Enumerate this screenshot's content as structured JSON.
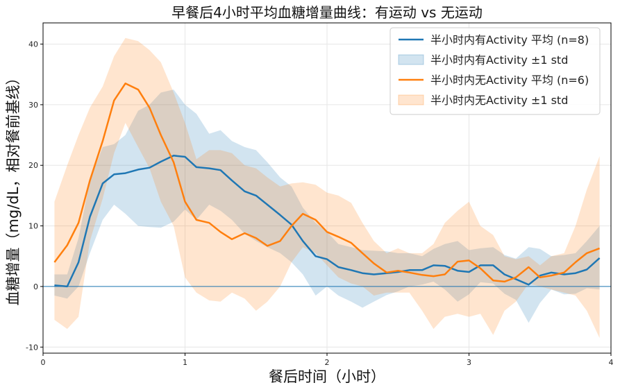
{
  "chart_data": {
    "type": "line",
    "title": "早餐后4小时平均血糖增量曲线：有运动 vs 无运动",
    "xlabel": "餐后时间（小时）",
    "ylabel": "血糖增量（mg/dL，相对餐前基线）",
    "xlim": [
      0,
      4
    ],
    "ylim": [
      -11,
      43.5
    ],
    "xticks": [
      0,
      1,
      2,
      3,
      4
    ],
    "xtick_labels": [
      "0",
      "1",
      "2",
      "3",
      "4"
    ],
    "yticks": [
      -10,
      0,
      10,
      20,
      30,
      40
    ],
    "ytick_labels": [
      "-10",
      "0",
      "10",
      "20",
      "30",
      "40"
    ],
    "grid": true,
    "legend_position": "top-right",
    "reference_line": {
      "y": 0,
      "color": "#1f77b4"
    },
    "x": [
      0.08,
      0.17,
      0.25,
      0.33,
      0.42,
      0.5,
      0.58,
      0.67,
      0.75,
      0.83,
      0.92,
      1.0,
      1.08,
      1.17,
      1.25,
      1.33,
      1.42,
      1.5,
      1.58,
      1.67,
      1.75,
      1.83,
      1.92,
      2.0,
      2.08,
      2.17,
      2.25,
      2.33,
      2.42,
      2.5,
      2.58,
      2.67,
      2.75,
      2.83,
      2.92,
      3.0,
      3.08,
      3.17,
      3.25,
      3.33,
      3.42,
      3.5,
      3.58,
      3.67,
      3.75,
      3.83,
      3.92
    ],
    "series": [
      {
        "name": "半小时内有Activity 平均 (n=8)",
        "band_name": "半小时内有Activity ±1 std",
        "color": "#1f77b4",
        "band_color": "#1f77b4",
        "mean": [
          0.2,
          0.0,
          4.0,
          11.5,
          17.0,
          18.5,
          18.7,
          19.3,
          19.6,
          20.6,
          21.6,
          21.4,
          19.7,
          19.5,
          19.2,
          17.5,
          15.7,
          15.0,
          13.5,
          11.8,
          10.2,
          7.5,
          5.0,
          4.5,
          3.2,
          2.7,
          2.2,
          2.0,
          2.2,
          2.4,
          2.7,
          2.7,
          3.5,
          3.4,
          2.6,
          2.4,
          3.5,
          3.5,
          2.0,
          1.2,
          0.3,
          1.8,
          2.3,
          2.0,
          2.2,
          2.8,
          4.7
        ],
        "upper": [
          2.0,
          2.0,
          8.0,
          17.5,
          23.0,
          23.5,
          25.0,
          29.0,
          30.0,
          32.0,
          32.5,
          30.0,
          28.5,
          25.2,
          25.8,
          24.0,
          23.0,
          22.5,
          20.5,
          18.0,
          16.5,
          13.0,
          10.5,
          9.0,
          7.0,
          6.5,
          6.0,
          5.9,
          5.8,
          5.5,
          5.5,
          5.0,
          6.2,
          7.0,
          7.5,
          6.0,
          6.3,
          6.5,
          5.2,
          4.6,
          6.5,
          6.2,
          5.0,
          5.2,
          5.5,
          7.5,
          10.0
        ],
        "lower": [
          -1.5,
          -2.0,
          0.0,
          5.5,
          11.0,
          13.5,
          12.0,
          10.0,
          9.8,
          9.7,
          10.7,
          12.7,
          11.0,
          13.5,
          12.5,
          11.0,
          8.7,
          7.5,
          6.5,
          5.5,
          4.0,
          2.0,
          -1.5,
          0.0,
          -1.5,
          -2.5,
          -3.5,
          -2.5,
          -1.4,
          -0.8,
          0.0,
          0.3,
          0.8,
          -0.5,
          -2.5,
          -1.3,
          0.7,
          0.5,
          -1.2,
          -2.2,
          -6.0,
          -2.7,
          -0.5,
          -1.3,
          -1.2,
          -0.3,
          -0.5
        ]
      },
      {
        "name": "半小时内无Activity 平均 (n=6)",
        "band_name": "半小时内无Activity ±1 std",
        "color": "#ff7f0e",
        "band_color": "#ff7f0e",
        "mean": [
          4.0,
          6.8,
          10.5,
          17.5,
          24.0,
          30.7,
          33.5,
          32.5,
          29.5,
          25.0,
          20.5,
          14.0,
          11.0,
          10.5,
          9.0,
          7.8,
          8.8,
          8.0,
          6.7,
          7.5,
          10.0,
          12.0,
          11.0,
          9.0,
          8.2,
          7.2,
          5.5,
          3.8,
          2.3,
          2.6,
          2.3,
          1.9,
          1.7,
          2.0,
          4.1,
          4.3,
          3.0,
          1.0,
          0.8,
          1.5,
          3.2,
          1.5,
          1.8,
          2.3,
          4.0,
          5.5,
          6.3
        ],
        "upper": [
          14.0,
          20.0,
          25.0,
          29.5,
          33.0,
          38.0,
          41.0,
          40.5,
          39.0,
          37.0,
          32.0,
          27.0,
          21.0,
          22.5,
          22.5,
          22.0,
          20.0,
          19.5,
          18.0,
          16.5,
          17.0,
          17.2,
          16.8,
          15.5,
          15.0,
          13.8,
          10.5,
          7.5,
          5.5,
          6.3,
          5.5,
          5.5,
          7.0,
          10.5,
          12.5,
          14.0,
          10.0,
          8.5,
          5.0,
          4.5,
          5.0,
          3.5,
          5.0,
          5.5,
          10.0,
          16.0,
          21.5
        ],
        "lower": [
          -5.5,
          -7.0,
          -5.0,
          7.5,
          14.5,
          22.0,
          27.0,
          23.0,
          19.5,
          14.0,
          10.0,
          1.5,
          -1.0,
          -2.3,
          -2.5,
          -1.0,
          -2.0,
          -4.0,
          -2.5,
          0.0,
          4.0,
          6.5,
          5.5,
          3.5,
          1.5,
          0.5,
          0.0,
          -1.5,
          -1.0,
          -1.0,
          -1.0,
          -4.0,
          -7.0,
          -5.0,
          -4.5,
          -5.0,
          -4.5,
          -8.0,
          -4.0,
          -2.5,
          0.5,
          0.0,
          -0.5,
          -1.0,
          -1.5,
          -4.0,
          -8.5
        ]
      }
    ]
  }
}
